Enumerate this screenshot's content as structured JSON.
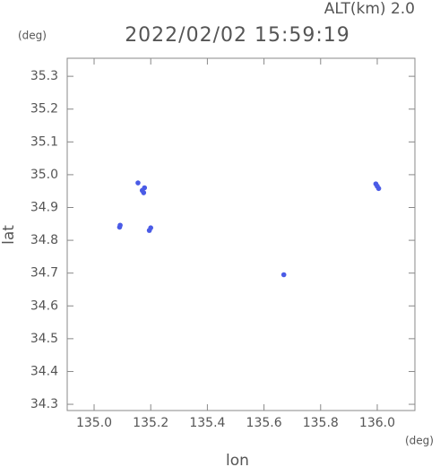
{
  "chart_data": {
    "type": "scatter",
    "title": "2022/02/02 15:59:19",
    "subtitle": "ALT(km) 2.0",
    "y_unit": "(deg)",
    "x_unit": "(deg)",
    "x_label": "lon",
    "y_label": "lat",
    "xlim": [
      134.905,
      136.133
    ],
    "ylim": [
      34.281,
      35.355
    ],
    "xticks": [
      {
        "value": 135.0,
        "label": "135.0"
      },
      135.2,
      135.4,
      135.6,
      135.8,
      {
        "value": 136.0,
        "label": "136.0"
      }
    ],
    "yticks": [
      34.3,
      34.4,
      34.5,
      34.6,
      34.7,
      34.8,
      34.9,
      {
        "value": 35.0,
        "label": "35.0"
      },
      35.1,
      35.2,
      35.3
    ],
    "series": [
      {
        "color": "#4a5be6",
        "x": [
          135.09,
          135.092,
          135.17,
          135.178,
          135.175,
          135.155,
          135.195,
          135.2,
          135.995,
          136.005,
          136.0,
          135.67
        ],
        "y": [
          34.84,
          34.846,
          34.952,
          34.96,
          34.945,
          34.975,
          34.83,
          34.838,
          34.972,
          34.958,
          34.965,
          34.695
        ]
      }
    ]
  }
}
